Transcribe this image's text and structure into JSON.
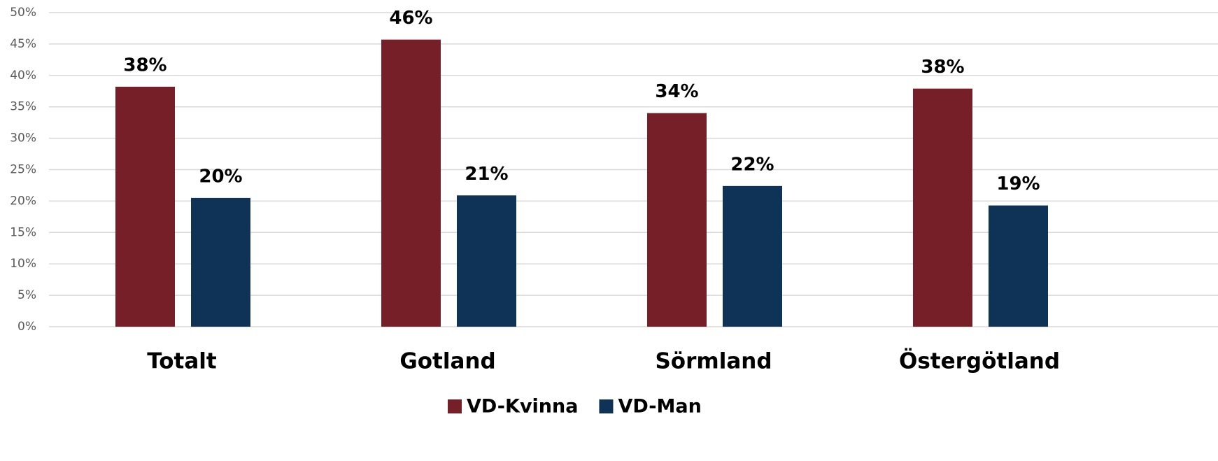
{
  "chart_data": {
    "type": "bar",
    "categories": [
      "Totalt",
      "Gotland",
      "Sörmland",
      "Östergötland"
    ],
    "series": [
      {
        "name": "VD-Kvinna",
        "color": "#761f29",
        "values": [
          38.2,
          45.7,
          34,
          37.9
        ],
        "value_labels": [
          "38%",
          "46%",
          "34%",
          "38%"
        ]
      },
      {
        "name": "VD-Man",
        "color": "#0f3257",
        "values": [
          20.5,
          20.9,
          22.4,
          19.3
        ],
        "value_labels": [
          "20%",
          "21%",
          "22%",
          "19%"
        ]
      }
    ],
    "ylim": [
      0,
      50
    ],
    "yticks": [
      {
        "value": 0,
        "label": "0%"
      },
      {
        "value": 5,
        "label": "5%"
      },
      {
        "value": 10,
        "label": "10%"
      },
      {
        "value": 15,
        "label": "15%"
      },
      {
        "value": 20,
        "label": "20%"
      },
      {
        "value": 25,
        "label": "25%"
      },
      {
        "value": 30,
        "label": "30%"
      },
      {
        "value": 35,
        "label": "35%"
      },
      {
        "value": 40,
        "label": "40%"
      },
      {
        "value": 45,
        "label": "45%"
      },
      {
        "value": 50,
        "label": "50%"
      }
    ],
    "grid": true,
    "legend": "bottom"
  }
}
